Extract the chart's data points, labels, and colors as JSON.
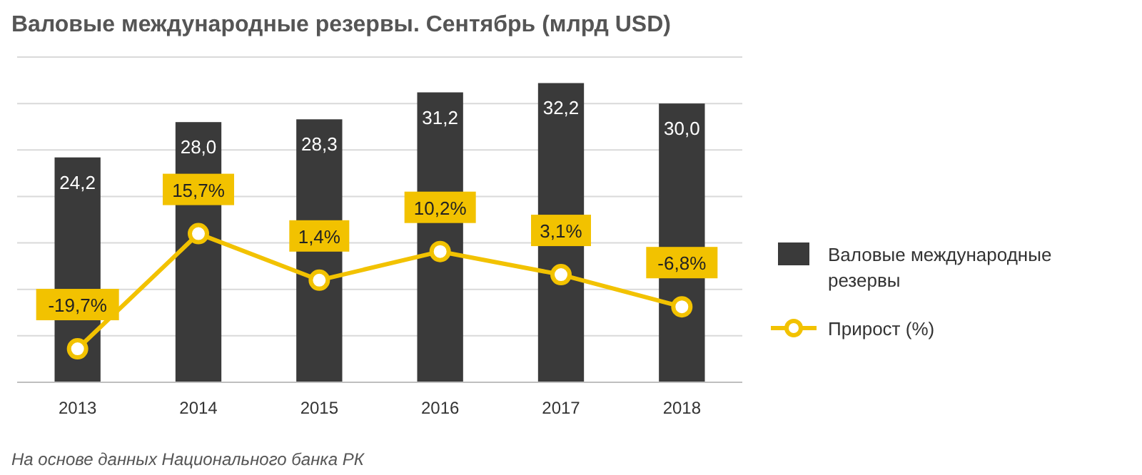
{
  "chart_data": {
    "type": "bar",
    "title": "Валовые  международные резервы. Сентябрь (млрд USD)",
    "categories": [
      "2013",
      "2014",
      "2015",
      "2016",
      "2017",
      "2018"
    ],
    "series": [
      {
        "name": "Валовые международные резервы",
        "color": "#3a3a3a",
        "values": [
          24.2,
          28.0,
          28.3,
          31.2,
          32.2,
          30.0
        ],
        "value_labels": [
          "24,2",
          "28,0",
          "28,3",
          "31,2",
          "32,2",
          "30,0"
        ]
      },
      {
        "name": "Прирост (%)",
        "type": "line",
        "axis": "y2",
        "color": "#f2c200",
        "values": [
          -19.7,
          15.7,
          1.4,
          10.2,
          3.1,
          -6.8
        ],
        "value_labels": [
          "-19,7%",
          "15,7%",
          "1,4%",
          "10,2%",
          "3,1%",
          "-6,8%"
        ]
      }
    ],
    "ylim": [
      0,
      35
    ],
    "yticks": [
      {
        "value": 0,
        "label": null
      },
      {
        "value": 5,
        "label": null
      },
      {
        "value": 10,
        "label": null
      },
      {
        "value": 15,
        "label": null
      },
      {
        "value": 20,
        "label": null
      },
      {
        "value": 25,
        "label": null
      },
      {
        "value": 30,
        "label": null
      },
      {
        "value": 35,
        "label": null
      }
    ],
    "y2lim": [
      -30,
      70
    ],
    "tick_labels": "x",
    "grid": "y",
    "legend": "right",
    "marker": "circle",
    "line_style": "solid",
    "annotations": [
      "На основе данных Национального банка РК"
    ]
  }
}
